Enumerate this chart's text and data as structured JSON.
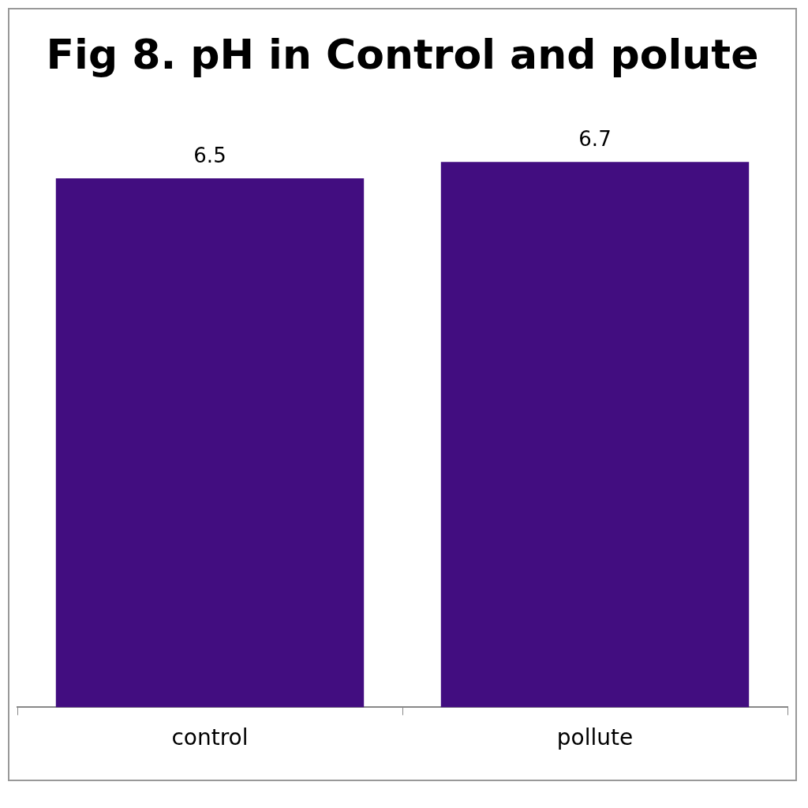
{
  "chart_data": {
    "type": "bar",
    "title": "Fig 8. pH in Control and polute",
    "categories": [
      "control",
      "pollute"
    ],
    "values": [
      6.5,
      6.7
    ],
    "color": "#420d80",
    "data_labels": true
  }
}
